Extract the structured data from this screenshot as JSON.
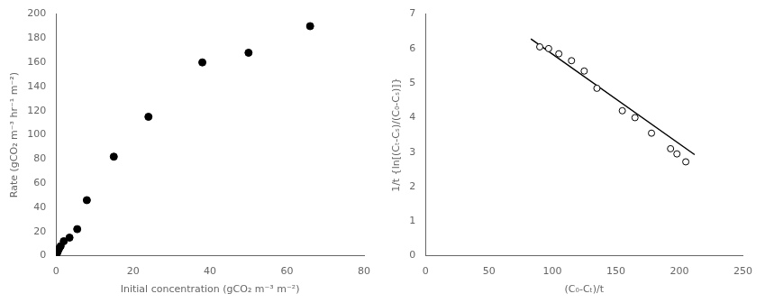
{
  "chart_data": [
    {
      "type": "scatter",
      "xlabel": "Initial concentration (gCO₂ m⁻³ m⁻²)",
      "ylabel": "Rate (gCO₂ m⁻³ hr⁻¹ m⁻²)",
      "series": [
        {
          "type": "scatter",
          "x": [
            0.1,
            0.2,
            0.4,
            0.6,
            0.8,
            1.2,
            2.0,
            3.5,
            5.5,
            8.0,
            15.0,
            24.0,
            38.0,
            50.0,
            66.0
          ],
          "values": [
            1,
            2,
            3,
            5,
            6,
            8,
            12,
            15,
            22,
            46,
            82,
            115,
            160,
            168,
            190
          ],
          "color": "#000000",
          "marker": "circle"
        }
      ],
      "xlim": [
        0,
        80
      ],
      "ylim": [
        0,
        200
      ],
      "xticks": [
        0,
        20,
        40,
        60,
        80
      ],
      "yticks": [
        0,
        20,
        40,
        60,
        80,
        100,
        120,
        140,
        160,
        180,
        200
      ],
      "grid": false
    },
    {
      "type": "scatter",
      "xlabel": "(C₀-Cₜ)/t",
      "ylabel": "1/t {ln[(Cₜ-Cₛ)/(C₀-Cₛ)]}",
      "series": [
        {
          "type": "scatter",
          "x": [
            90,
            97,
            105,
            115,
            125,
            135,
            155,
            165,
            178,
            193,
            198,
            205
          ],
          "values": [
            6.05,
            6.0,
            5.85,
            5.65,
            5.35,
            4.85,
            4.2,
            4.0,
            3.55,
            3.1,
            2.95,
            2.72
          ],
          "color": "#000000",
          "marker": "open_circle"
        },
        {
          "type": "line",
          "x": [
            83,
            212
          ],
          "values": [
            6.282,
            2.928
          ],
          "color": "#000000",
          "line_style": "solid"
        }
      ],
      "xlim": [
        0,
        250
      ],
      "ylim": [
        0,
        7
      ],
      "xticks": [
        0,
        50,
        100,
        150,
        200,
        250
      ],
      "yticks": [
        0,
        1,
        2,
        3,
        4,
        5,
        6,
        7
      ],
      "grid": false
    }
  ]
}
